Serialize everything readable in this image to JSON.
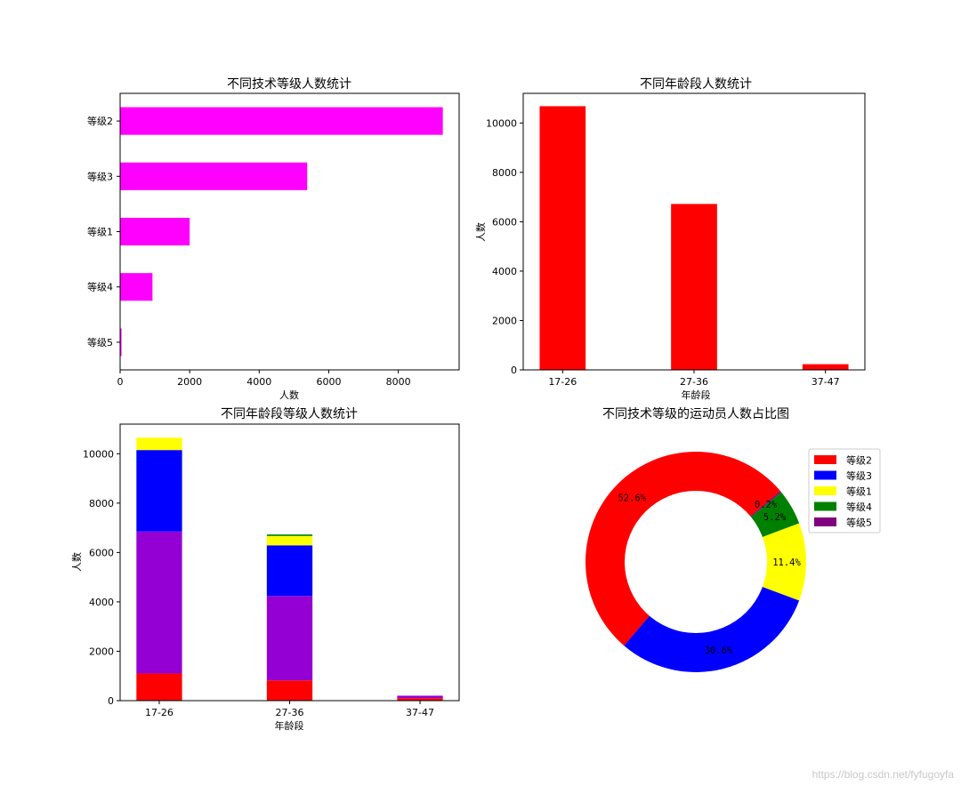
{
  "chart_data": [
    {
      "type": "bar",
      "orientation": "horizontal",
      "title": "不同技术等级人数统计",
      "xlabel": "人数",
      "ylabel": "",
      "categories": [
        "等级2",
        "等级3",
        "等级1",
        "等级4",
        "等级5"
      ],
      "values": [
        9280,
        5380,
        2000,
        930,
        40
      ],
      "xlim": [
        0,
        9750
      ],
      "xticks": [
        0,
        2000,
        4000,
        6000,
        8000
      ],
      "color": "#ff00ff"
    },
    {
      "type": "bar",
      "title": "不同年龄段人数统计",
      "xlabel": "年龄段",
      "ylabel": "人数",
      "categories": [
        "17-26",
        "27-36",
        "37-47"
      ],
      "values": [
        10680,
        6720,
        230
      ],
      "ylim": [
        0,
        11200
      ],
      "yticks": [
        0,
        2000,
        4000,
        6000,
        8000,
        10000
      ],
      "color": "#ff0000"
    },
    {
      "type": "bar",
      "stacked": true,
      "title": "不同年龄段等级人数统计",
      "xlabel": "年龄段",
      "ylabel": "人数",
      "categories": [
        "17-26",
        "27-36",
        "37-47"
      ],
      "ylim": [
        0,
        11200
      ],
      "yticks": [
        0,
        2000,
        4000,
        6000,
        8000,
        10000
      ],
      "series": [
        {
          "values": [
            1100,
            820,
            100
          ],
          "color": "#ff0000"
        },
        {
          "values": [
            5750,
            3420,
            100
          ],
          "color": "#9400d3"
        },
        {
          "values": [
            3300,
            2050,
            0
          ],
          "color": "#0000ff"
        },
        {
          "values": [
            500,
            380,
            0
          ],
          "color": "#ffff00"
        },
        {
          "values": [
            0,
            60,
            0
          ],
          "color": "#008000"
        }
      ]
    },
    {
      "type": "pie",
      "donut": true,
      "title": "不同技术等级的运动员人数占比图",
      "labels": [
        "等级2",
        "等级3",
        "等级1",
        "等级4",
        "等级5"
      ],
      "values": [
        52.6,
        30.6,
        11.4,
        5.2,
        0.2
      ],
      "pct_labels": [
        "52.6%",
        "30.6%",
        "11.4%",
        "5.2%",
        "0.2%"
      ],
      "colors": [
        "#ff0000",
        "#0000ff",
        "#ffff00",
        "#008000",
        "#800080"
      ],
      "legend_placement": "upper-right"
    }
  ],
  "watermark": "https://blog.csdn.net/fyfugoyfa"
}
